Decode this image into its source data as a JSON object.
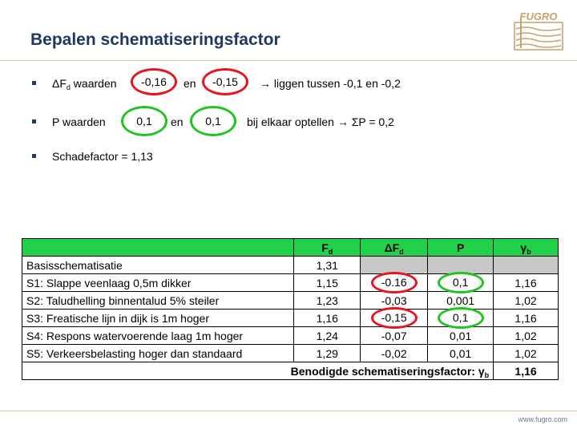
{
  "slide": {
    "title": "Bepalen schematiseringsfactor"
  },
  "logo": {
    "brand": "FUGRO",
    "icon": "fugro-logo-icon",
    "color": "#c9a16a"
  },
  "bullets": {
    "b1": {
      "delta_f": "ΔF",
      "sub": "d",
      "mid": " waarden ",
      "v1": "-0,16",
      "en": "en",
      "v2": "-0,15",
      "rest": "→ liggen tussen -0,1 en -0,2"
    },
    "b2": {
      "prefix": "P waarden",
      "v1": "0,1",
      "en": "en",
      "v2": "0,1",
      "rest": "bij elkaar optellen → ΣP = 0,2"
    },
    "b3": {
      "text": "Schadefactor = 1,13"
    }
  },
  "table": {
    "headers": {
      "fd": "F",
      "fd_sub": "d",
      "dfd": "ΔF",
      "dfd_sub": "d",
      "p": "P",
      "gamma": "γ",
      "gamma_sub": "b"
    },
    "rows": [
      {
        "label": "Basisschematisatie",
        "fd": "1,31",
        "dfd": "",
        "p": "",
        "gamma": ""
      },
      {
        "label": "S1: Slappe veenlaag 0,5m dikker",
        "fd": "1,15",
        "dfd": "-0.16",
        "p": "0,1",
        "gamma": "1,16"
      },
      {
        "label": "S2: Taludhelling binnentalud 5% steiler",
        "fd": "1,23",
        "dfd": "-0,03",
        "p": "0,001",
        "gamma": "1,02"
      },
      {
        "label": "S3: Freatische lijn in dijk is 1m hoger",
        "fd": "1,16",
        "dfd": "-0,15",
        "p": "0,1",
        "gamma": "1,16"
      },
      {
        "label": "S4: Respons watervoerende laag 1m hoger",
        "fd": "1,24",
        "dfd": "-0,07",
        "p": "0,01",
        "gamma": "1,02"
      },
      {
        "label": "S5: Verkeersbelasting hoger dan standaard",
        "fd": "1,29",
        "dfd": "-0,02",
        "p": "0,01",
        "gamma": "1,02"
      }
    ],
    "total": {
      "label": "Benodigde schematiseringsfactor: γ",
      "label_sub": "b",
      "value": "1,16"
    }
  },
  "colors": {
    "header_green": "#22d14a",
    "highlight_red": "#e8141e",
    "highlight_green": "#20c420",
    "title_blue": "#1f3864"
  },
  "footer": {
    "url": "www.fugro.com"
  }
}
